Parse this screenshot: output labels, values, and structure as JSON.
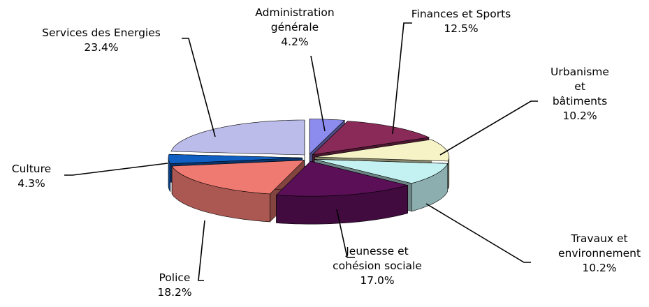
{
  "chart_data": {
    "type": "pie3d",
    "categories": [
      "Administration\ngénérale",
      "Finances et Sports",
      "Urbanisme et\nbâtiments",
      "Travaux et\nenvironnement",
      "Jeunesse et\ncohésion sociale",
      "Police",
      "Culture",
      "Services des Energies"
    ],
    "values": [
      4.2,
      12.5,
      10.2,
      10.2,
      17.0,
      18.2,
      4.3,
      23.4
    ],
    "value_labels": [
      "4.2%",
      "12.5%",
      "10.2%",
      "10.2%",
      "17.0%",
      "18.2%",
      "4.3%",
      "23.4%"
    ],
    "colors": [
      "#8c8cef",
      "#8a2a58",
      "#f6f3c6",
      "#c4f1f1",
      "#5a0f57",
      "#ef7a72",
      "#1060c4",
      "#bcbceb"
    ]
  }
}
